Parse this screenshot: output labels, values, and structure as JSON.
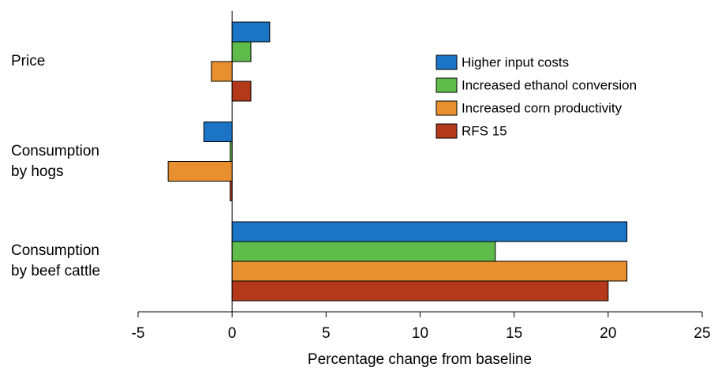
{
  "chart_data": {
    "type": "bar",
    "orientation": "horizontal",
    "categories": [
      "Price",
      "Consumption by hogs",
      "Consumption by beef cattle"
    ],
    "series": [
      {
        "name": "Higher input costs",
        "color": "#1b74c5",
        "values": [
          2,
          -1.5,
          21
        ]
      },
      {
        "name": "Increased ethanol conversion",
        "color": "#5fbc4b",
        "values": [
          1,
          -0.1,
          14
        ]
      },
      {
        "name": "Increased corn productivity",
        "color": "#e8902f",
        "values": [
          -1.1,
          -3.4,
          21
        ]
      },
      {
        "name": "RFS 15",
        "color": "#b4391b",
        "values": [
          1,
          -0.1,
          20
        ]
      }
    ],
    "xlabel": "Percentage change from baseline",
    "xlim": [
      -5,
      25
    ],
    "xticks": [
      -5,
      0,
      5,
      10,
      15,
      20,
      25
    ],
    "legend": "upper right"
  }
}
